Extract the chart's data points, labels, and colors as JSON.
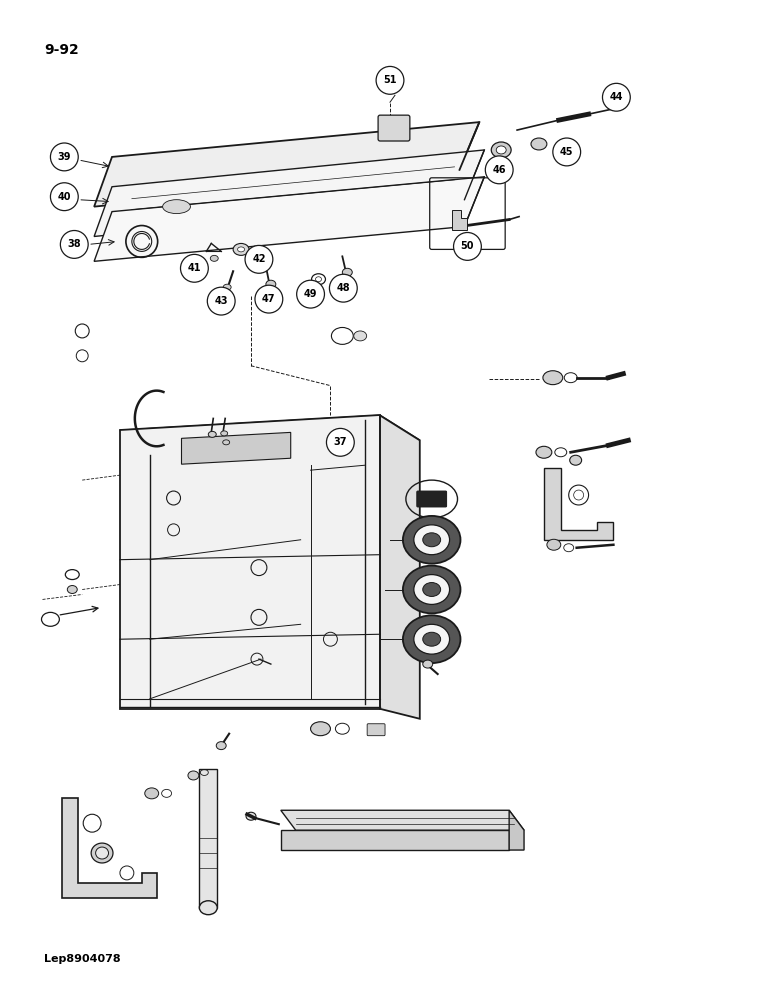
{
  "page_label": "9-92",
  "bottom_label": "Lep8904078",
  "bg_color": "#ffffff",
  "line_color": "#1a1a1a",
  "text_color": "#000000",
  "fig_width": 7.8,
  "fig_height": 10.0,
  "dpi": 100
}
